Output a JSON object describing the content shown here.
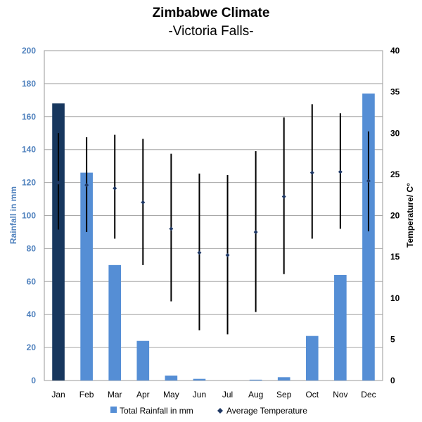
{
  "chart_data": {
    "type": "bar",
    "title": "Zimbabwe Climate",
    "subtitle": "-Victoria Falls-",
    "categories": [
      "Jan",
      "Feb",
      "Mar",
      "Apr",
      "May",
      "Jun",
      "Jul",
      "Aug",
      "Sep",
      "Oct",
      "Nov",
      "Dec"
    ],
    "ylabel": "Rainfall in mm",
    "y2label": "Temperature/ C°",
    "ylim": [
      0,
      200
    ],
    "y2lim": [
      0,
      40
    ],
    "yticks": [
      0,
      20,
      40,
      60,
      80,
      100,
      120,
      140,
      160,
      180,
      200
    ],
    "y2ticks": [
      0,
      5,
      10,
      15,
      20,
      25,
      30,
      35,
      40
    ],
    "grid": true,
    "legend_position": "bottom",
    "series": [
      {
        "name": "Total Rainfall in mm",
        "kind": "bar",
        "axis": "left",
        "color": "#558ed5",
        "highlight_color": "#17375e",
        "highlight_index": 0,
        "values": [
          168,
          126,
          70,
          24,
          3,
          1,
          0,
          0.5,
          2,
          27,
          64,
          174
        ]
      },
      {
        "name": "Average Temperature",
        "kind": "range-marker",
        "axis": "right",
        "color": "#1f3864",
        "values": [
          24,
          23.7,
          23.3,
          21.6,
          18.4,
          15.5,
          15.2,
          18,
          22.3,
          25.2,
          25.3,
          24.2
        ],
        "high": [
          30,
          29.5,
          29.8,
          29.3,
          27.5,
          25.1,
          24.9,
          27.8,
          31.9,
          33.5,
          32.4,
          30.2
        ],
        "low": [
          18.3,
          18,
          17.2,
          14,
          9.6,
          6.1,
          5.6,
          8.3,
          12.9,
          17.2,
          18.4,
          18.1
        ]
      }
    ]
  }
}
